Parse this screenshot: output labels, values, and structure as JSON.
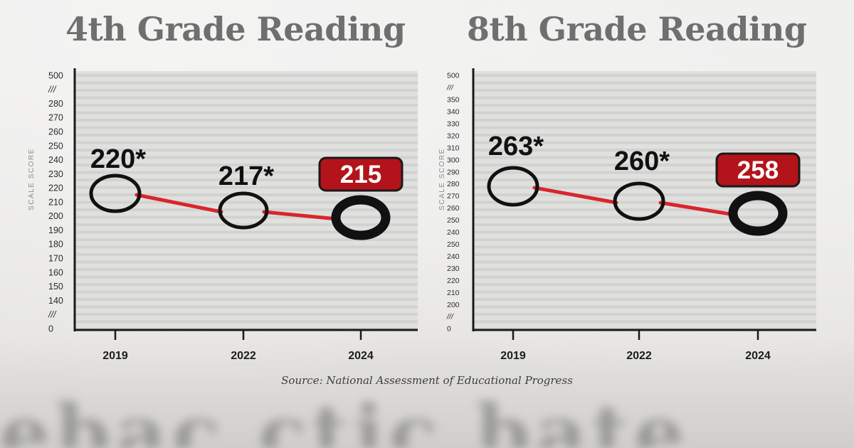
{
  "source": "Source: National Assessment of Educational Progress",
  "background_text": "ebac ctic bate",
  "colors": {
    "line": "#d8262b",
    "highlight_box": "#b3131a",
    "marker": "#111111",
    "plot_bg": "#e0e0df",
    "title": "#6f6f6f"
  },
  "chart_data": [
    {
      "type": "line",
      "title": "4th Grade Reading",
      "ylabel": "SCALE SCORE",
      "xlabel": "",
      "categories": [
        "2019",
        "2022",
        "2024"
      ],
      "series": [
        {
          "values": [
            220,
            217,
            215
          ]
        }
      ],
      "data_labels": [
        "220*",
        "217*",
        "215"
      ],
      "highlighted_index": 2,
      "y_ticks": [
        "500",
        "///",
        "280",
        "270",
        "260",
        "250",
        "240",
        "230",
        "220",
        "210",
        "200",
        "190",
        "180",
        "170",
        "160",
        "150",
        "140",
        "///",
        "0"
      ],
      "ylim": [
        0,
        500
      ],
      "axis_break": true,
      "grid": true
    },
    {
      "type": "line",
      "title": "8th Grade Reading",
      "ylabel": "SCALE SCORE",
      "xlabel": "",
      "categories": [
        "2019",
        "2022",
        "2024"
      ],
      "series": [
        {
          "values": [
            263,
            260,
            258
          ]
        }
      ],
      "data_labels": [
        "263*",
        "260*",
        "258"
      ],
      "highlighted_index": 2,
      "y_ticks": [
        "500",
        "///",
        "350",
        "340",
        "330",
        "320",
        "310",
        "300",
        "290",
        "280",
        "270",
        "260",
        "250",
        "240",
        "250",
        "240",
        "230",
        "220",
        "210",
        "200",
        "///",
        "0"
      ],
      "ylim": [
        0,
        500
      ],
      "axis_break": true,
      "grid": true
    }
  ]
}
